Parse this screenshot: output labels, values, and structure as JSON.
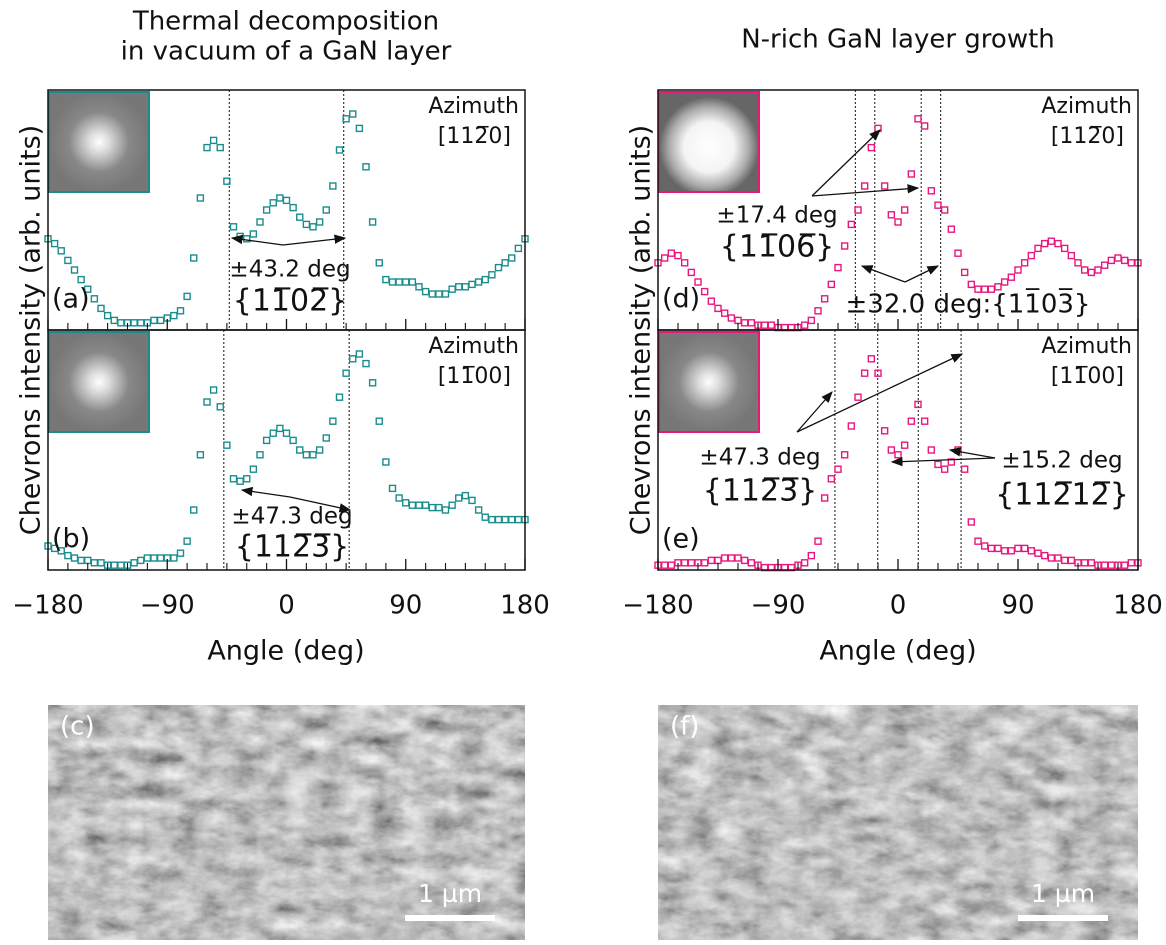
{
  "columns": [
    {
      "title": [
        "Thermal decomposition",
        "in vacuum of a GaN layer"
      ],
      "ylabel": "Chevrons intensity (arb. units)",
      "xlabel": "Angle (deg)",
      "image": {
        "label": "(c)",
        "scale_bar": "1 µm"
      }
    },
    {
      "title": [
        "N-rich GaN layer growth"
      ],
      "ylabel": "Chevrons intensity (arb. units)",
      "xlabel": "Angle (deg)",
      "image": {
        "label": "(f)",
        "scale_bar": "1 µm"
      }
    }
  ],
  "chart_data": [
    {
      "type": "scatter",
      "panel": "(a)",
      "azimuth_label": "Azimuth",
      "azimuth": "[112̅0]",
      "color": "#1a8c8c",
      "xlim": [
        -180,
        180
      ],
      "ylim": [
        0,
        1
      ],
      "xticks": [
        -180,
        -90,
        0,
        90,
        180
      ],
      "xtick_labels": false,
      "xminorticks": [
        -165,
        -150,
        -135,
        -120,
        -105,
        -75,
        -60,
        -45,
        -30,
        -15,
        15,
        30,
        45,
        60,
        75,
        105,
        120,
        135,
        150,
        165
      ],
      "vlines": [
        -43.2,
        43.2
      ],
      "annotations": [
        "±43.2 deg",
        "{11̅02̅}"
      ],
      "x": [
        -180,
        -175,
        -170,
        -165,
        -160,
        -155,
        -150,
        -145,
        -140,
        -135,
        -130,
        -125,
        -120,
        -115,
        -110,
        -105,
        -100,
        -95,
        -90,
        -85,
        -80,
        -75,
        -70,
        -65,
        -60,
        -55,
        -50,
        -45,
        -40,
        -35,
        -30,
        -25,
        -20,
        -15,
        -10,
        -5,
        0,
        5,
        10,
        15,
        20,
        25,
        30,
        35,
        40,
        45,
        50,
        55,
        60,
        65,
        70,
        75,
        80,
        85,
        90,
        95,
        100,
        105,
        110,
        115,
        120,
        125,
        130,
        135,
        140,
        145,
        150,
        155,
        160,
        165,
        170,
        175,
        180
      ],
      "values": [
        0.38,
        0.36,
        0.33,
        0.29,
        0.25,
        0.21,
        0.17,
        0.13,
        0.09,
        0.06,
        0.04,
        0.03,
        0.03,
        0.03,
        0.03,
        0.03,
        0.04,
        0.04,
        0.05,
        0.06,
        0.08,
        0.14,
        0.3,
        0.55,
        0.76,
        0.79,
        0.76,
        0.62,
        0.43,
        0.39,
        0.38,
        0.4,
        0.45,
        0.5,
        0.53,
        0.55,
        0.54,
        0.51,
        0.47,
        0.44,
        0.43,
        0.45,
        0.5,
        0.6,
        0.75,
        0.88,
        0.9,
        0.84,
        0.68,
        0.45,
        0.28,
        0.21,
        0.2,
        0.2,
        0.2,
        0.2,
        0.18,
        0.16,
        0.15,
        0.15,
        0.15,
        0.17,
        0.18,
        0.18,
        0.19,
        0.2,
        0.21,
        0.23,
        0.26,
        0.28,
        0.3,
        0.34,
        0.38
      ]
    },
    {
      "type": "scatter",
      "panel": "(b)",
      "azimuth_label": "Azimuth",
      "azimuth": "[11̅00]",
      "color": "#1a8c8c",
      "xlim": [
        -180,
        180
      ],
      "ylim": [
        0,
        1
      ],
      "xticks": [
        {
          "value": -180,
          "label": "−180"
        },
        {
          "value": -90,
          "label": "−90"
        },
        0,
        90,
        180
      ],
      "xtick_labels": true,
      "xminorticks": [
        -165,
        -150,
        -135,
        -120,
        -105,
        -75,
        -60,
        -45,
        -30,
        -15,
        15,
        30,
        45,
        60,
        75,
        105,
        120,
        135,
        150,
        165
      ],
      "vlines": [
        -47.3,
        47.3
      ],
      "annotations": [
        "±47.3 deg",
        "{112̅3̅}"
      ],
      "x": [
        -180,
        -175,
        -170,
        -165,
        -160,
        -155,
        -150,
        -145,
        -140,
        -135,
        -130,
        -125,
        -120,
        -115,
        -110,
        -105,
        -100,
        -95,
        -90,
        -85,
        -80,
        -75,
        -70,
        -65,
        -60,
        -55,
        -50,
        -45,
        -40,
        -35,
        -30,
        -25,
        -20,
        -15,
        -10,
        -5,
        0,
        5,
        10,
        15,
        20,
        25,
        30,
        35,
        40,
        45,
        50,
        55,
        60,
        65,
        70,
        75,
        80,
        85,
        90,
        95,
        100,
        105,
        110,
        115,
        120,
        125,
        130,
        135,
        140,
        145,
        150,
        155,
        160,
        165,
        170,
        175,
        180
      ],
      "values": [
        0.1,
        0.09,
        0.08,
        0.06,
        0.05,
        0.04,
        0.04,
        0.03,
        0.03,
        0.02,
        0.02,
        0.02,
        0.02,
        0.03,
        0.04,
        0.05,
        0.05,
        0.05,
        0.05,
        0.05,
        0.07,
        0.12,
        0.25,
        0.48,
        0.7,
        0.75,
        0.68,
        0.52,
        0.38,
        0.37,
        0.38,
        0.42,
        0.48,
        0.54,
        0.57,
        0.59,
        0.57,
        0.54,
        0.5,
        0.48,
        0.48,
        0.5,
        0.55,
        0.62,
        0.72,
        0.82,
        0.88,
        0.9,
        0.86,
        0.78,
        0.62,
        0.45,
        0.34,
        0.3,
        0.28,
        0.27,
        0.27,
        0.27,
        0.26,
        0.26,
        0.25,
        0.27,
        0.3,
        0.31,
        0.29,
        0.25,
        0.22,
        0.21,
        0.21,
        0.21,
        0.21,
        0.21,
        0.21
      ]
    },
    {
      "type": "scatter",
      "panel": "(d)",
      "azimuth_label": "Azimuth",
      "azimuth": "[112̅0]",
      "color": "#e8177d",
      "xlim": [
        -180,
        180
      ],
      "ylim": [
        0,
        1
      ],
      "xticks": [
        -180,
        -90,
        0,
        90,
        180
      ],
      "xtick_labels": false,
      "xminorticks": [
        -165,
        -150,
        -135,
        -120,
        -105,
        -75,
        -60,
        -45,
        -30,
        -15,
        15,
        30,
        45,
        60,
        75,
        105,
        120,
        135,
        150,
        165
      ],
      "vlines": [
        -32.0,
        -17.4,
        17.4,
        32.0
      ],
      "annotations": [
        "±17.4 deg",
        "{11̅06̅}",
        "±32.0 deg:{11̅03̅}"
      ],
      "x": [
        -180,
        -175,
        -170,
        -165,
        -160,
        -155,
        -150,
        -145,
        -140,
        -135,
        -130,
        -125,
        -120,
        -115,
        -110,
        -105,
        -100,
        -95,
        -90,
        -85,
        -80,
        -75,
        -70,
        -65,
        -60,
        -55,
        -50,
        -45,
        -40,
        -35,
        -30,
        -25,
        -20,
        -15,
        -10,
        -5,
        0,
        5,
        10,
        15,
        20,
        25,
        30,
        35,
        40,
        45,
        50,
        55,
        60,
        65,
        70,
        75,
        80,
        85,
        90,
        95,
        100,
        105,
        110,
        115,
        120,
        125,
        130,
        135,
        140,
        145,
        150,
        155,
        160,
        165,
        170,
        175,
        180
      ],
      "values": [
        0.28,
        0.3,
        0.32,
        0.31,
        0.28,
        0.24,
        0.2,
        0.16,
        0.12,
        0.09,
        0.07,
        0.05,
        0.04,
        0.03,
        0.03,
        0.02,
        0.02,
        0.02,
        0.01,
        0.01,
        0.01,
        0.01,
        0.02,
        0.04,
        0.08,
        0.13,
        0.19,
        0.26,
        0.35,
        0.44,
        0.5,
        0.6,
        0.76,
        0.84,
        0.6,
        0.48,
        0.45,
        0.5,
        0.65,
        0.88,
        0.85,
        0.58,
        0.52,
        0.5,
        0.42,
        0.32,
        0.24,
        0.19,
        0.17,
        0.17,
        0.17,
        0.18,
        0.2,
        0.22,
        0.25,
        0.28,
        0.31,
        0.34,
        0.36,
        0.37,
        0.36,
        0.34,
        0.31,
        0.28,
        0.25,
        0.24,
        0.25,
        0.27,
        0.29,
        0.3,
        0.29,
        0.28,
        0.28
      ]
    },
    {
      "type": "scatter",
      "panel": "(e)",
      "azimuth_label": "Azimuth",
      "azimuth": "[11̅00]",
      "color": "#e8177d",
      "xlim": [
        -180,
        180
      ],
      "ylim": [
        0,
        1
      ],
      "xticks": [
        {
          "value": -180,
          "label": "−180"
        },
        {
          "value": -90,
          "label": "−90"
        },
        0,
        90,
        180
      ],
      "xtick_labels": true,
      "xminorticks": [
        -165,
        -150,
        -135,
        -120,
        -105,
        -75,
        -60,
        -45,
        -30,
        -15,
        15,
        30,
        45,
        60,
        75,
        105,
        120,
        135,
        150,
        165
      ],
      "vlines": [
        -47.3,
        -15.2,
        15.2,
        47.3
      ],
      "annotations": [
        "±47.3 deg",
        "{112̅3̅}",
        "±15.2 deg",
        "{112̅12̅}"
      ],
      "x": [
        -180,
        -175,
        -170,
        -165,
        -160,
        -155,
        -150,
        -145,
        -140,
        -135,
        -130,
        -125,
        -120,
        -115,
        -110,
        -105,
        -100,
        -95,
        -90,
        -85,
        -80,
        -75,
        -70,
        -65,
        -60,
        -55,
        -50,
        -45,
        -40,
        -35,
        -30,
        -25,
        -20,
        -15,
        -10,
        -5,
        0,
        5,
        10,
        15,
        20,
        25,
        30,
        35,
        40,
        45,
        50,
        55,
        60,
        65,
        70,
        75,
        80,
        85,
        90,
        95,
        100,
        105,
        110,
        115,
        120,
        125,
        130,
        135,
        140,
        145,
        150,
        155,
        160,
        165,
        170,
        175,
        180
      ],
      "values": [
        0.02,
        0.02,
        0.02,
        0.03,
        0.03,
        0.03,
        0.03,
        0.03,
        0.04,
        0.04,
        0.05,
        0.05,
        0.05,
        0.04,
        0.03,
        0.02,
        0.01,
        0.01,
        0.01,
        0.01,
        0.01,
        0.02,
        0.03,
        0.06,
        0.12,
        0.3,
        0.38,
        0.42,
        0.48,
        0.6,
        0.72,
        0.82,
        0.88,
        0.82,
        0.58,
        0.5,
        0.48,
        0.52,
        0.62,
        0.69,
        0.62,
        0.5,
        0.44,
        0.42,
        0.45,
        0.5,
        0.42,
        0.2,
        0.12,
        0.1,
        0.09,
        0.09,
        0.08,
        0.08,
        0.09,
        0.09,
        0.08,
        0.07,
        0.06,
        0.05,
        0.05,
        0.04,
        0.04,
        0.03,
        0.03,
        0.03,
        0.02,
        0.02,
        0.02,
        0.02,
        0.02,
        0.03,
        0.03
      ]
    }
  ]
}
